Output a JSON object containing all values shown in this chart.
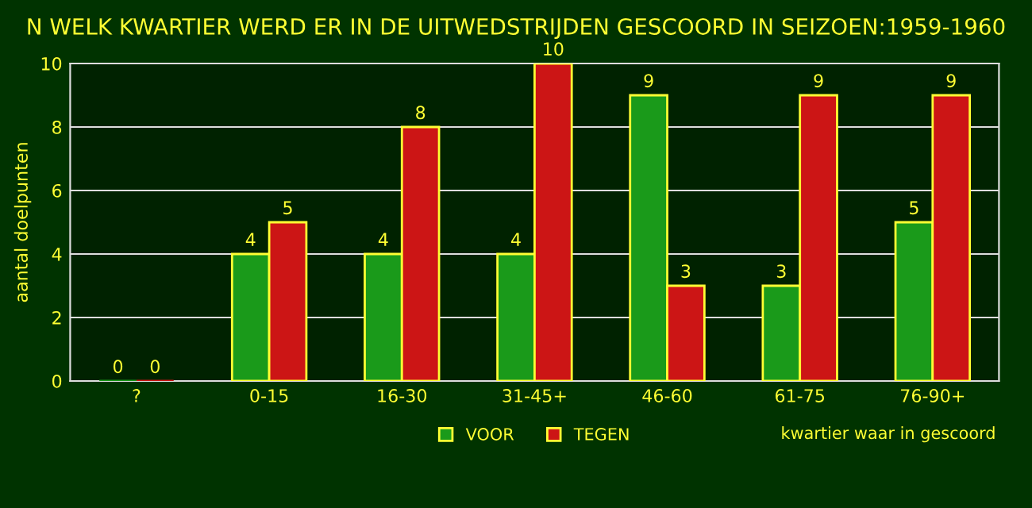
{
  "chart_data": {
    "type": "bar",
    "title": "N WELK KWARTIER WERD ER IN DE UITWEDSTRIJDEN GESCOORD IN SEIZOEN:1959-1960",
    "xlabel": "kwartier waar in gescoord",
    "ylabel": "aantal doelpunten",
    "categories": [
      "?",
      "0-15",
      "16-30",
      "31-45+",
      "46-60",
      "61-75",
      "76-90+"
    ],
    "series": [
      {
        "name": "VOOR",
        "color": "#1a9a1a",
        "values": [
          0,
          4,
          4,
          4,
          9,
          3,
          5
        ]
      },
      {
        "name": "TEGEN",
        "color": "#cc1515",
        "values": [
          0,
          5,
          8,
          10,
          3,
          9,
          9
        ]
      }
    ],
    "ylim": [
      0,
      10
    ],
    "yticks": [
      0,
      2,
      4,
      6,
      8,
      10
    ],
    "grid": "y",
    "legend": "bottom",
    "data_labels": true
  }
}
